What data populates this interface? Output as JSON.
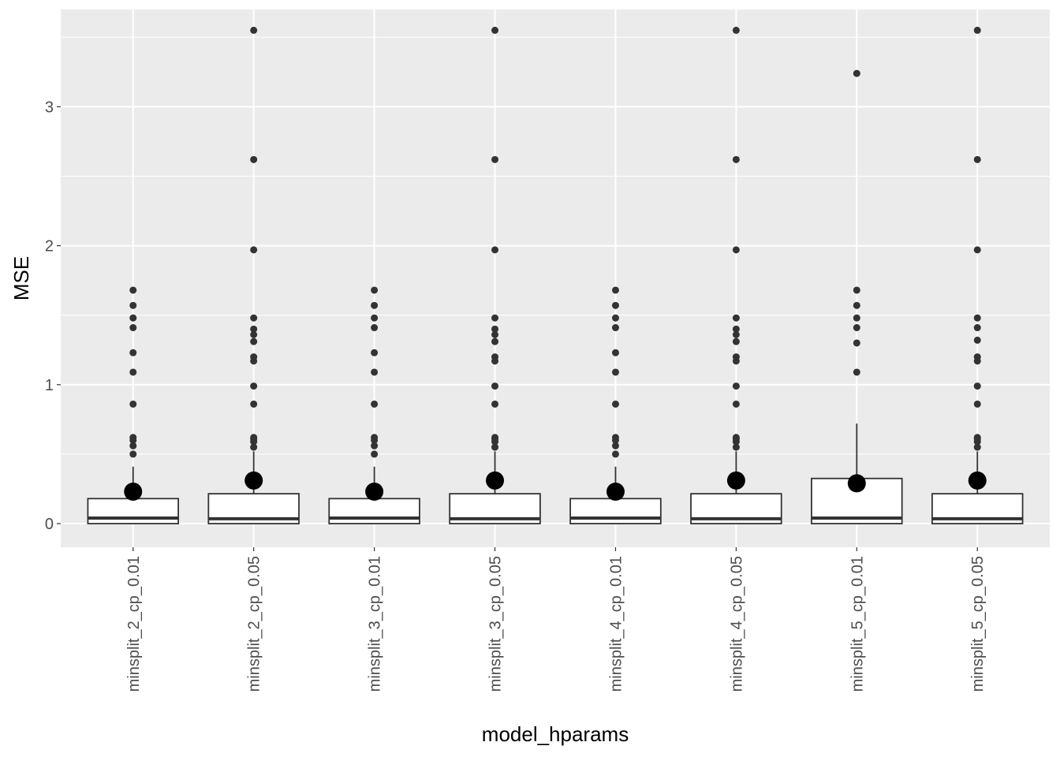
{
  "chart_data": {
    "type": "boxplot",
    "xlabel": "model_hparams",
    "ylabel": "MSE",
    "ylim": [
      -0.17,
      3.7
    ],
    "yticks": [
      0,
      1,
      2,
      3
    ],
    "grid": true,
    "x_tick_rotation": -90,
    "colors": {
      "panel_bg": "#ebebeb",
      "grid_major": "#ffffff",
      "box_fill": "#ffffff",
      "box_stroke": "#333333",
      "outlier": "#333333",
      "mean_point": "#000000",
      "tick_text": "#4d4d4d",
      "axis_title": "#000000"
    },
    "categories": [
      {
        "label": "minsplit_2_cp_0.01",
        "q1": 0.0,
        "median": 0.04,
        "q3": 0.18,
        "whisker_low": 0.0,
        "whisker_high": 0.41,
        "mean": 0.23,
        "outliers": [
          0.5,
          0.56,
          0.6,
          0.62,
          0.86,
          1.09,
          1.23,
          1.41,
          1.48,
          1.57,
          1.68
        ]
      },
      {
        "label": "minsplit_2_cp_0.05",
        "q1": 0.0,
        "median": 0.035,
        "q3": 0.215,
        "whisker_low": 0.0,
        "whisker_high": 0.52,
        "mean": 0.31,
        "outliers": [
          0.55,
          0.59,
          0.61,
          0.62,
          0.86,
          0.99,
          1.17,
          1.2,
          1.31,
          1.36,
          1.4,
          1.48,
          1.97,
          2.62,
          3.55
        ]
      },
      {
        "label": "minsplit_3_cp_0.01",
        "q1": 0.0,
        "median": 0.04,
        "q3": 0.18,
        "whisker_low": 0.0,
        "whisker_high": 0.41,
        "mean": 0.23,
        "outliers": [
          0.5,
          0.56,
          0.6,
          0.62,
          0.86,
          1.09,
          1.23,
          1.41,
          1.48,
          1.57,
          1.68
        ]
      },
      {
        "label": "minsplit_3_cp_0.05",
        "q1": 0.0,
        "median": 0.035,
        "q3": 0.215,
        "whisker_low": 0.0,
        "whisker_high": 0.52,
        "mean": 0.31,
        "outliers": [
          0.55,
          0.59,
          0.61,
          0.62,
          0.86,
          0.99,
          1.17,
          1.2,
          1.31,
          1.36,
          1.4,
          1.48,
          1.97,
          2.62,
          3.55
        ]
      },
      {
        "label": "minsplit_4_cp_0.01",
        "q1": 0.0,
        "median": 0.04,
        "q3": 0.18,
        "whisker_low": 0.0,
        "whisker_high": 0.41,
        "mean": 0.23,
        "outliers": [
          0.5,
          0.56,
          0.6,
          0.62,
          0.86,
          1.09,
          1.23,
          1.41,
          1.48,
          1.57,
          1.68
        ]
      },
      {
        "label": "minsplit_4_cp_0.05",
        "q1": 0.0,
        "median": 0.035,
        "q3": 0.215,
        "whisker_low": 0.0,
        "whisker_high": 0.52,
        "mean": 0.31,
        "outliers": [
          0.55,
          0.59,
          0.61,
          0.62,
          0.86,
          0.99,
          1.17,
          1.2,
          1.31,
          1.36,
          1.4,
          1.48,
          1.97,
          2.62,
          3.55
        ]
      },
      {
        "label": "minsplit_5_cp_0.01",
        "q1": 0.0,
        "median": 0.04,
        "q3": 0.325,
        "whisker_low": 0.0,
        "whisker_high": 0.72,
        "mean": 0.29,
        "outliers": [
          1.09,
          1.3,
          1.41,
          1.48,
          1.57,
          1.68,
          3.24
        ]
      },
      {
        "label": "minsplit_5_cp_0.05",
        "q1": 0.0,
        "median": 0.035,
        "q3": 0.215,
        "whisker_low": 0.0,
        "whisker_high": 0.52,
        "mean": 0.31,
        "outliers": [
          0.55,
          0.59,
          0.61,
          0.62,
          0.86,
          0.99,
          1.17,
          1.2,
          1.32,
          1.41,
          1.48,
          1.97,
          2.62,
          3.55
        ]
      }
    ]
  }
}
